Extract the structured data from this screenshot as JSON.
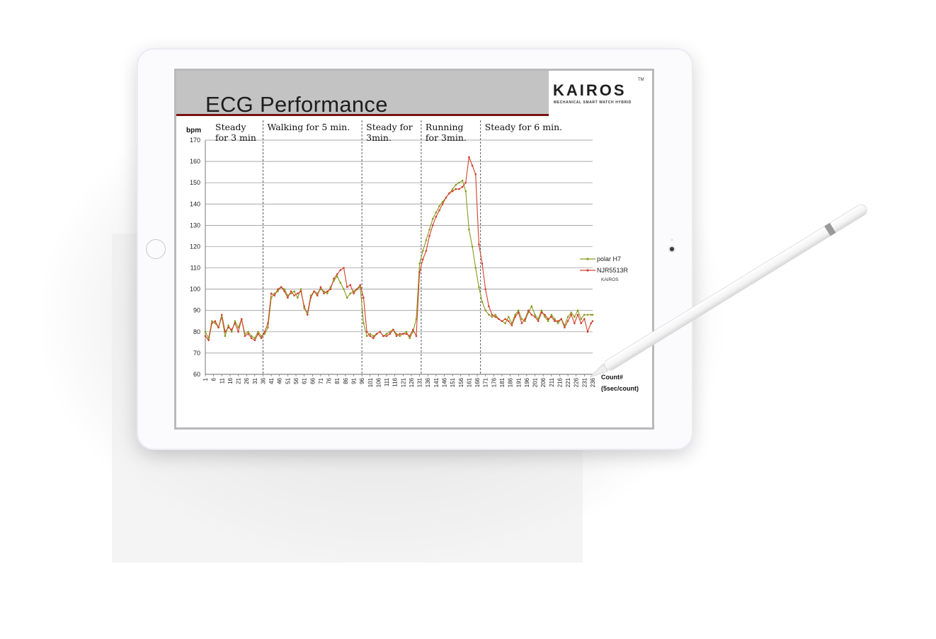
{
  "slide": {
    "title": "ECG Performance",
    "logo": {
      "word": "KAIROS",
      "tm": "TM",
      "tagline": "MECHANICAL SMART WATCH HYBRID"
    }
  },
  "chart_data": {
    "type": "line",
    "ylabel": "bpm",
    "xlabel": "Count#",
    "xlabel_sub": "(5sec/count)",
    "ylim": [
      60,
      170
    ],
    "y_ticks": [
      60,
      70,
      80,
      90,
      100,
      110,
      120,
      130,
      140,
      150,
      160,
      170
    ],
    "x_ticks": [
      1,
      6,
      11,
      16,
      21,
      26,
      31,
      36,
      41,
      46,
      51,
      56,
      61,
      66,
      71,
      76,
      81,
      86,
      91,
      96,
      101,
      106,
      111,
      116,
      121,
      126,
      131,
      136,
      141,
      146,
      151,
      156,
      161,
      166,
      171,
      176,
      181,
      186,
      191,
      196,
      201,
      206,
      211,
      216,
      221,
      226,
      231,
      236
    ],
    "grid": true,
    "legend_position": "right",
    "segments": [
      {
        "label": "Steady for 3 min",
        "end_count": 36
      },
      {
        "label": "Walking for 5 min.",
        "end_count": 96
      },
      {
        "label": "Steady for 3min.",
        "end_count": 132
      },
      {
        "label": "Running for 3min.",
        "end_count": 168
      },
      {
        "label": "Steady for 6 min."
      }
    ],
    "series": [
      {
        "name": "polar H7",
        "color": "#8a9a1c",
        "x": [
          1,
          3,
          5,
          7,
          9,
          11,
          13,
          15,
          17,
          19,
          21,
          23,
          25,
          27,
          29,
          31,
          33,
          35,
          37,
          39,
          41,
          43,
          45,
          47,
          49,
          51,
          53,
          55,
          57,
          59,
          61,
          63,
          65,
          67,
          69,
          71,
          73,
          75,
          77,
          79,
          81,
          83,
          85,
          87,
          89,
          91,
          93,
          95,
          97,
          99,
          101,
          103,
          105,
          107,
          109,
          111,
          113,
          115,
          117,
          119,
          121,
          123,
          125,
          127,
          129,
          131,
          133,
          135,
          137,
          139,
          141,
          143,
          145,
          147,
          149,
          151,
          153,
          155,
          157,
          159,
          161,
          163,
          165,
          167,
          169,
          171,
          173,
          175,
          177,
          179,
          181,
          183,
          185,
          187,
          189,
          191,
          193,
          195,
          197,
          199,
          201,
          203,
          205,
          207,
          209,
          211,
          213,
          215,
          217,
          219,
          221,
          223,
          225,
          227,
          229,
          231,
          233,
          235,
          236
        ],
        "y": [
          80,
          77,
          85,
          84,
          82,
          87,
          78,
          83,
          80,
          85,
          82,
          86,
          79,
          80,
          78,
          77,
          80,
          78,
          79,
          82,
          96,
          98,
          99,
          101,
          100,
          97,
          98,
          99,
          96,
          100,
          91,
          89,
          97,
          99,
          98,
          100,
          99,
          98,
          101,
          104,
          106,
          103,
          100,
          96,
          98,
          99,
          100,
          101,
          84,
          78,
          79,
          78,
          79,
          80,
          78,
          79,
          80,
          81,
          79,
          78,
          79,
          80,
          77,
          80,
          86,
          112,
          118,
          123,
          128,
          133,
          136,
          139,
          141,
          143,
          145,
          147,
          149,
          150,
          151,
          146,
          128,
          120,
          110,
          101,
          94,
          90,
          88,
          87,
          88,
          86,
          85,
          84,
          87,
          84,
          88,
          90,
          86,
          85,
          89,
          92,
          88,
          86,
          90,
          87,
          85,
          88,
          86,
          84,
          86,
          83,
          87,
          89,
          87,
          90,
          86,
          88,
          88,
          88,
          88
        ]
      },
      {
        "name": "NJR5513R",
        "sublabel": "KAIROS",
        "color": "#d0402c",
        "x": [
          1,
          3,
          5,
          7,
          9,
          11,
          13,
          15,
          17,
          19,
          21,
          23,
          25,
          27,
          29,
          31,
          33,
          35,
          37,
          39,
          41,
          43,
          45,
          47,
          49,
          51,
          53,
          55,
          57,
          59,
          61,
          63,
          65,
          67,
          69,
          71,
          73,
          75,
          77,
          79,
          81,
          83,
          85,
          87,
          89,
          91,
          93,
          95,
          97,
          99,
          101,
          103,
          105,
          107,
          109,
          111,
          113,
          115,
          117,
          119,
          121,
          123,
          125,
          127,
          129,
          131,
          133,
          135,
          137,
          139,
          141,
          143,
          145,
          147,
          149,
          151,
          153,
          155,
          157,
          159,
          161,
          163,
          165,
          167,
          169,
          171,
          173,
          175,
          177,
          179,
          181,
          183,
          185,
          187,
          189,
          191,
          193,
          195,
          197,
          199,
          201,
          203,
          205,
          207,
          209,
          211,
          213,
          215,
          217,
          219,
          221,
          223,
          225,
          227,
          229,
          231,
          233,
          235,
          236
        ],
        "y": [
          78,
          76,
          84,
          85,
          82,
          88,
          80,
          82,
          81,
          84,
          80,
          86,
          78,
          79,
          77,
          76,
          79,
          77,
          80,
          84,
          98,
          97,
          100,
          101,
          99,
          96,
          99,
          97,
          98,
          99,
          92,
          88,
          96,
          99,
          97,
          101,
          98,
          99,
          100,
          105,
          107,
          109,
          110,
          101,
          102,
          98,
          100,
          102,
          96,
          80,
          78,
          77,
          79,
          80,
          78,
          78,
          79,
          81,
          78,
          79,
          79,
          79,
          78,
          81,
          78,
          108,
          114,
          118,
          125,
          130,
          134,
          137,
          140,
          143,
          145,
          146,
          147,
          147,
          148,
          150,
          162,
          158,
          154,
          121,
          112,
          100,
          92,
          88,
          87,
          86,
          85,
          86,
          85,
          83,
          87,
          89,
          84,
          86,
          90,
          88,
          87,
          85,
          89,
          88,
          86,
          87,
          85,
          85,
          86,
          82,
          85,
          88,
          84,
          88,
          84,
          86,
          80,
          84,
          85
        ]
      }
    ]
  }
}
